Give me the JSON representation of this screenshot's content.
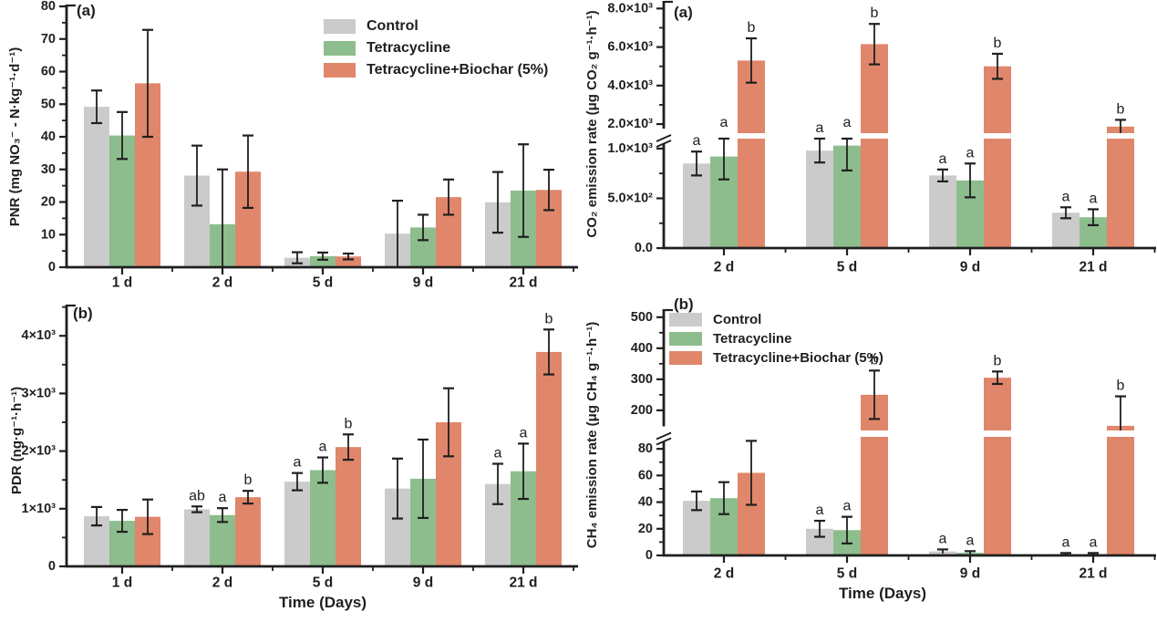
{
  "legend": {
    "items": [
      {
        "label": "Control",
        "color": "#cbcbcb"
      },
      {
        "label": "Tetracycline",
        "color": "#8dbd8d"
      },
      {
        "label": "Tetracycline+Biochar (5%)",
        "color": "#e0866a"
      }
    ]
  },
  "chart_data": [
    {
      "id": "pnr",
      "type": "bar",
      "panel_label": "(a)",
      "error_bars": true,
      "y_axis": {
        "title": "PNR (mg NO₃⁻ - N·kg⁻¹·d⁻¹)",
        "segments": [
          {
            "range": [
              0,
              80
            ],
            "ticks": [
              {
                "v": 0,
                "label": "0"
              },
              {
                "v": 10,
                "label": "10"
              },
              {
                "v": 20,
                "label": "20"
              },
              {
                "v": 30,
                "label": "30"
              },
              {
                "v": 40,
                "label": "40"
              },
              {
                "v": 50,
                "label": "50"
              },
              {
                "v": 60,
                "label": "60"
              },
              {
                "v": 70,
                "label": "70"
              },
              {
                "v": 80,
                "label": "80"
              }
            ],
            "minor": [
              5,
              15,
              25,
              35,
              45,
              55,
              65,
              75
            ]
          }
        ]
      },
      "x_axis": {
        "title": null,
        "categories": [
          "1 d",
          "2 d",
          "5 d",
          "9 d",
          "21 d"
        ]
      },
      "series": [
        {
          "name": "Control",
          "color": "#cbcbcb",
          "values": [
            49.2,
            28.1,
            2.9,
            10.3,
            19.9
          ],
          "errors": [
            5.0,
            9.2,
            1.7,
            10.1,
            9.3
          ],
          "letters": [
            null,
            null,
            null,
            null,
            null
          ]
        },
        {
          "name": "Tetracycline",
          "color": "#8dbd8d",
          "values": [
            40.4,
            13.2,
            3.4,
            12.2,
            23.5
          ],
          "errors": [
            7.2,
            16.8,
            1.1,
            3.9,
            14.2
          ],
          "letters": [
            null,
            null,
            null,
            null,
            null
          ]
        },
        {
          "name": "Tetracycline+Biochar (5%)",
          "color": "#e0866a",
          "values": [
            56.4,
            29.3,
            3.3,
            21.5,
            23.7
          ],
          "errors": [
            16.4,
            11.1,
            0.9,
            5.4,
            6.2
          ],
          "letters": [
            null,
            null,
            null,
            null,
            null
          ]
        }
      ]
    },
    {
      "id": "pdr",
      "type": "bar",
      "panel_label": "(b)",
      "error_bars": true,
      "y_axis": {
        "title": "PDR (ng·g⁻¹·h⁻¹)",
        "segments": [
          {
            "range": [
              0,
              4510
            ],
            "ticks": [
              {
                "v": 0,
                "label": "0"
              },
              {
                "v": 1000,
                "label": "1×10³"
              },
              {
                "v": 2000,
                "label": "2×10³"
              },
              {
                "v": 3000,
                "label": "3×10³"
              },
              {
                "v": 4000,
                "label": "4×10³"
              }
            ],
            "minor": [
              500,
              1500,
              2500,
              3500,
              4500
            ]
          }
        ]
      },
      "x_axis": {
        "title": "Time (Days)",
        "categories": [
          "1 d",
          "2 d",
          "5 d",
          "9 d",
          "21 d"
        ]
      },
      "series": [
        {
          "name": "Control",
          "color": "#cbcbcb",
          "values": [
            870,
            990,
            1470,
            1350,
            1430
          ],
          "errors": [
            160,
            50,
            150,
            520,
            350
          ],
          "letters": [
            null,
            "ab",
            "a",
            null,
            "a"
          ]
        },
        {
          "name": "Tetracycline",
          "color": "#8dbd8d",
          "values": [
            790,
            890,
            1670,
            1520,
            1650
          ],
          "errors": [
            190,
            120,
            220,
            680,
            480
          ],
          "letters": [
            null,
            "a",
            "a",
            null,
            "a"
          ]
        },
        {
          "name": "Tetracycline+Biochar (5%)",
          "color": "#e0866a",
          "values": [
            860,
            1200,
            2070,
            2500,
            3720
          ],
          "errors": [
            300,
            110,
            220,
            590,
            390
          ],
          "letters": [
            null,
            "b",
            "b",
            null,
            "b"
          ]
        }
      ]
    },
    {
      "id": "co2",
      "type": "bar",
      "panel_label": "(a)",
      "error_bars": true,
      "axis_break": true,
      "y_axis": {
        "title": "CO₂ emission rate (μg CO₂ g⁻¹·h⁻¹)",
        "segments": [
          {
            "range": [
              0,
              1100
            ],
            "ticks": [
              {
                "v": 0,
                "label": "0.0"
              },
              {
                "v": 500,
                "label": "5.0×10²"
              },
              {
                "v": 1000,
                "label": "1.0×10³"
              }
            ],
            "minor": [
              250,
              750
            ]
          },
          {
            "range": [
              1530,
              8300
            ],
            "ticks": [
              {
                "v": 2000,
                "label": "2.0×10³"
              },
              {
                "v": 4000,
                "label": "4.0×10³"
              },
              {
                "v": 6000,
                "label": "6.0×10³"
              },
              {
                "v": 8000,
                "label": "8.0×10³"
              }
            ],
            "minor": [
              3000,
              5000,
              7000
            ]
          }
        ]
      },
      "x_axis": {
        "title": null,
        "categories": [
          "2 d",
          "5 d",
          "9 d",
          "21 d"
        ]
      },
      "series": [
        {
          "name": "Control",
          "color": "#cbcbcb",
          "values": [
            850,
            980,
            730,
            355
          ],
          "errors": [
            120,
            120,
            60,
            55
          ],
          "letters": [
            "a",
            "a",
            "a",
            "a"
          ]
        },
        {
          "name": "Tetracycline",
          "color": "#8dbd8d",
          "values": [
            920,
            1030,
            680,
            310
          ],
          "errors": [
            230,
            250,
            170,
            80
          ],
          "letters": [
            "a",
            "a",
            "a",
            "a"
          ]
        },
        {
          "name": "Tetracycline+Biochar (5%)",
          "color": "#e0866a",
          "values": [
            5300,
            6150,
            5000,
            1870
          ],
          "errors": [
            1150,
            1050,
            650,
            350
          ],
          "letters": [
            "b",
            "b",
            "b",
            "b"
          ]
        }
      ]
    },
    {
      "id": "ch4",
      "type": "bar",
      "panel_label": "(b)",
      "error_bars": true,
      "axis_break": true,
      "y_axis": {
        "title": "CH₄ emission rate (μg CH₄ g⁻¹·h⁻¹)",
        "segments": [
          {
            "range": [
              0,
              89
            ],
            "ticks": [
              {
                "v": 0,
                "label": "0"
              },
              {
                "v": 20,
                "label": "20"
              },
              {
                "v": 40,
                "label": "40"
              },
              {
                "v": 60,
                "label": "60"
              },
              {
                "v": 80,
                "label": "80"
              }
            ],
            "minor": [
              10,
              30,
              50,
              70
            ]
          },
          {
            "range": [
              135,
              520
            ],
            "ticks": [
              {
                "v": 200,
                "label": "200"
              },
              {
                "v": 300,
                "label": "300"
              },
              {
                "v": 400,
                "label": "400"
              },
              {
                "v": 500,
                "label": "500"
              }
            ],
            "minor": [
              250,
              350,
              450
            ]
          }
        ]
      },
      "x_axis": {
        "title": "Time (Days)",
        "categories": [
          "2 d",
          "5 d",
          "9 d",
          "21 d"
        ]
      },
      "series": [
        {
          "name": "Control",
          "color": "#cbcbcb",
          "values": [
            41,
            20,
            3,
            1
          ],
          "errors": [
            7,
            6,
            1.5,
            0.8
          ],
          "letters": [
            null,
            "a",
            "a",
            "a"
          ]
        },
        {
          "name": "Tetracycline",
          "color": "#8dbd8d",
          "values": [
            43,
            19,
            2,
            1
          ],
          "errors": [
            12,
            10,
            1.2,
            0.8
          ],
          "letters": [
            null,
            "a",
            "a",
            "a"
          ]
        },
        {
          "name": "Tetracycline+Biochar (5%)",
          "color": "#e0866a",
          "values": [
            62,
            250,
            305,
            150
          ],
          "errors": [
            24,
            78,
            20,
            95
          ],
          "letters": [
            null,
            "b",
            "b",
            "b"
          ]
        }
      ]
    }
  ]
}
